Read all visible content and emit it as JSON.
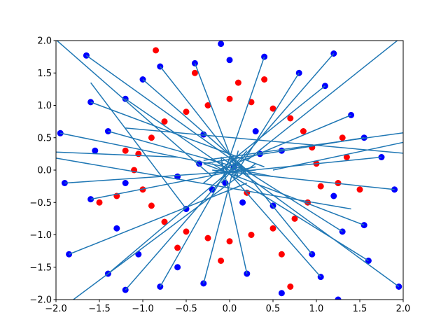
{
  "chart_data": {
    "type": "scatter",
    "xlim": [
      -2,
      2
    ],
    "ylim": [
      -2,
      2
    ],
    "xticks": [
      {
        "value": -2,
        "label": "−2.0"
      },
      {
        "value": -1.5,
        "label": "−1.5"
      },
      {
        "value": -1,
        "label": "−1.0"
      },
      {
        "value": -0.5,
        "label": "−0.5"
      },
      {
        "value": 0,
        "label": "0.0"
      },
      {
        "value": 0.5,
        "label": "0.5"
      },
      {
        "value": 1,
        "label": "1.0"
      },
      {
        "value": 1.5,
        "label": "1.5"
      },
      {
        "value": 2,
        "label": "2.0"
      }
    ],
    "yticks": [
      {
        "value": -2,
        "label": "−2.0"
      },
      {
        "value": -1.5,
        "label": "−1.5"
      },
      {
        "value": -1,
        "label": "−1.0"
      },
      {
        "value": -0.5,
        "label": "−0.5"
      },
      {
        "value": 0,
        "label": "0.0"
      },
      {
        "value": 0.5,
        "label": "0.5"
      },
      {
        "value": 1,
        "label": "1.0"
      },
      {
        "value": 1.5,
        "label": "1.5"
      },
      {
        "value": 2,
        "label": "2.0"
      }
    ],
    "series": [
      {
        "color": "#ff0000",
        "x": [
          1.0,
          0.95,
          0.85,
          0.7,
          0.5,
          0.25,
          0.0,
          -0.25,
          -0.5,
          -0.75,
          -0.9,
          -1.05,
          -1.1,
          -1.0,
          -0.9,
          -0.75,
          -0.5,
          -0.25,
          0.0,
          0.25,
          0.5,
          0.75,
          0.9,
          1.05,
          1.3,
          1.25,
          -1.3,
          -1.2,
          0.4,
          -0.4,
          0.6,
          -0.6,
          1.35,
          -0.85,
          0.7,
          0.1,
          -0.1,
          1.5,
          -1.5,
          0.2
        ],
        "y": [
          0.1,
          0.35,
          0.6,
          0.8,
          0.95,
          1.05,
          1.1,
          1.0,
          0.9,
          0.75,
          0.5,
          0.25,
          0.0,
          -0.3,
          -0.55,
          -0.8,
          -0.95,
          -1.05,
          -1.1,
          -1.0,
          -0.9,
          -0.75,
          -0.5,
          -0.25,
          0.5,
          -0.2,
          -0.4,
          0.3,
          1.4,
          1.5,
          -1.3,
          -1.2,
          0.2,
          1.85,
          -1.8,
          1.35,
          -1.4,
          -0.3,
          -0.5,
          -0.35
        ]
      },
      {
        "color": "#0000ff",
        "x": [
          -1.65,
          -1.6,
          -1.95,
          -1.9,
          -1.85,
          -1.4,
          -1.2,
          -0.8,
          -0.3,
          0.2,
          0.6,
          1.05,
          1.25,
          1.6,
          1.55,
          1.95,
          1.9,
          1.75,
          1.55,
          1.2,
          0.8,
          0.4,
          0.0,
          -0.1,
          -0.4,
          -0.8,
          -1.0,
          -1.2,
          -1.4,
          -1.55,
          -1.6,
          -1.3,
          -1.05,
          -0.6,
          0.95,
          1.3,
          1.4,
          1.1,
          0.35,
          -0.35,
          0.15,
          -0.2,
          0.6,
          -0.6,
          0.3,
          -0.3,
          0.5,
          -0.5,
          0.05,
          -0.05,
          1.2,
          -1.2
        ],
        "y": [
          1.77,
          1.05,
          0.57,
          -0.2,
          -1.3,
          -1.6,
          -1.85,
          -1.8,
          -1.75,
          -1.6,
          -1.9,
          -1.65,
          -2.0,
          -1.4,
          -0.85,
          -1.8,
          -0.3,
          0.2,
          0.5,
          1.8,
          1.5,
          1.75,
          1.7,
          1.95,
          1.65,
          1.6,
          1.4,
          1.1,
          0.6,
          0.3,
          -0.45,
          -0.9,
          -1.3,
          -1.5,
          -1.3,
          -0.95,
          0.85,
          1.3,
          0.25,
          0.1,
          -0.5,
          -0.3,
          0.3,
          -0.1,
          0.6,
          0.55,
          -0.55,
          -0.6,
          0.05,
          -0.2,
          -0.4,
          -0.2
        ]
      }
    ],
    "lines": {
      "color": "#1f77b4",
      "segments": [
        {
          "x": [
            -1.65,
            0.3
          ],
          "y": [
            1.77,
            -0.1
          ]
        },
        {
          "x": [
            -1.6,
            0.4
          ],
          "y": [
            1.05,
            0.05
          ]
        },
        {
          "x": [
            -1.95,
            0.5
          ],
          "y": [
            0.57,
            -0.1
          ]
        },
        {
          "x": [
            -1.9,
            0.3
          ],
          "y": [
            -0.2,
            0.0
          ]
        },
        {
          "x": [
            -1.85,
            0.2
          ],
          "y": [
            -1.3,
            -0.2
          ]
        },
        {
          "x": [
            -1.4,
            0.1
          ],
          "y": [
            -1.6,
            0.1
          ]
        },
        {
          "x": [
            -1.2,
            0.2
          ],
          "y": [
            -1.85,
            0.3
          ]
        },
        {
          "x": [
            -0.8,
            0.05
          ],
          "y": [
            -1.8,
            0.2
          ]
        },
        {
          "x": [
            -0.3,
            0.1
          ],
          "y": [
            -1.75,
            0.3
          ]
        },
        {
          "x": [
            0.2,
            -0.1
          ],
          "y": [
            -1.6,
            0.2
          ]
        },
        {
          "x": [
            1.05,
            -0.1
          ],
          "y": [
            -1.65,
            0.1
          ]
        },
        {
          "x": [
            1.6,
            -0.2
          ],
          "y": [
            -1.4,
            0.1
          ]
        },
        {
          "x": [
            1.55,
            -0.3
          ],
          "y": [
            -0.85,
            0.1
          ]
        },
        {
          "x": [
            1.9,
            -0.2
          ],
          "y": [
            -0.3,
            0.0
          ]
        },
        {
          "x": [
            1.75,
            -0.1
          ],
          "y": [
            0.2,
            -0.05
          ]
        },
        {
          "x": [
            1.55,
            -0.3
          ],
          "y": [
            0.5,
            0.1
          ]
        },
        {
          "x": [
            1.2,
            -0.1
          ],
          "y": [
            1.8,
            -0.2
          ]
        },
        {
          "x": [
            0.8,
            0.05
          ],
          "y": [
            1.5,
            -0.1
          ]
        },
        {
          "x": [
            0.4,
            -0.05
          ],
          "y": [
            1.75,
            0.0
          ]
        },
        {
          "x": [
            -0.4,
            0.1
          ],
          "y": [
            1.65,
            -0.1
          ]
        },
        {
          "x": [
            -0.8,
            0.2
          ],
          "y": [
            1.6,
            -0.1
          ]
        },
        {
          "x": [
            -1.0,
            0.2
          ],
          "y": [
            1.4,
            0.0
          ]
        },
        {
          "x": [
            -1.2,
            0.1
          ],
          "y": [
            1.1,
            -0.1
          ]
        },
        {
          "x": [
            -1.4,
            0.2
          ],
          "y": [
            0.6,
            0.0
          ]
        },
        {
          "x": [
            -1.6,
            0.3
          ],
          "y": [
            -0.45,
            0.05
          ]
        },
        {
          "x": [
            1.4,
            -0.2
          ],
          "y": [
            0.85,
            -0.05
          ]
        },
        {
          "x": [
            1.1,
            -0.3
          ],
          "y": [
            1.3,
            -0.2
          ]
        },
        {
          "x": [
            0.95,
            0.1
          ],
          "y": [
            -1.3,
            0.1
          ]
        },
        {
          "x": [
            1.3,
            0.0
          ],
          "y": [
            -0.95,
            0.15
          ]
        },
        {
          "x": [
            0.5,
            2.6
          ],
          "y": [
            0.0,
            0.6
          ]
        },
        {
          "x": [
            0.3,
            -2.4
          ],
          "y": [
            0.1,
            -2.6
          ]
        },
        {
          "x": [
            -0.2,
            -2.5
          ],
          "y": [
            -0.1,
            2.6
          ]
        },
        {
          "x": [
            0.2,
            2.4
          ],
          "y": [
            0.15,
            2.5
          ]
        },
        {
          "x": [
            -2.5,
            1.4
          ],
          "y": [
            0.3,
            -0.6
          ]
        },
        {
          "x": [
            2.5,
            -1.2
          ],
          "y": [
            0.2,
            0.65
          ]
        },
        {
          "x": [
            -2.4,
            -0.6
          ],
          "y": [
            0.3,
            0.2
          ]
        },
        {
          "x": [
            2.4,
            -0.3
          ],
          "y": [
            0.65,
            0.15
          ]
        },
        {
          "x": [
            -1.6,
            -0.5
          ],
          "y": [
            1.35,
            -0.6
          ]
        },
        {
          "x": [
            1.95,
            -0.1
          ],
          "y": [
            -1.8,
            0.2
          ]
        }
      ]
    }
  }
}
